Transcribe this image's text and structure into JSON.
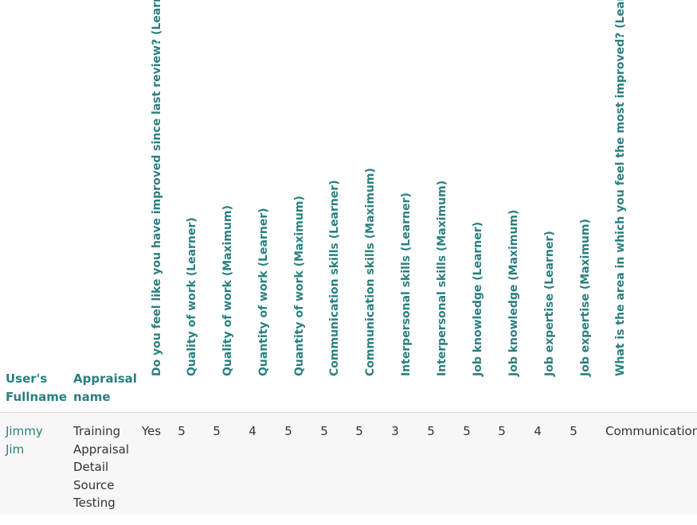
{
  "table": {
    "headers": {
      "fullname": [
        "User's",
        "Fullname"
      ],
      "appraisal": [
        "Appraisal",
        "name"
      ],
      "questions": [
        "Do you feel like you have improved since last review? (Learner)",
        "Quality of work (Learner)",
        "Quality of work (Maximum)",
        "Quantity of work (Learner)",
        "Quantity of work (Maximum)",
        "Communication skills (Learner)",
        "Communication skills (Maximum)",
        "Interpersonal skills (Learner)",
        "Interpersonal skills (Maximum)",
        "Job knowledge (Learner)",
        "Job knowledge (Maximum)",
        "Job expertise (Learner)",
        "Job expertise (Maximum)",
        "What is the area in which you feel the most improved? (Learner)"
      ]
    },
    "rows": [
      {
        "fullname": [
          "Jimmy",
          "Jim"
        ],
        "appraisal": [
          "Training",
          "Appraisal",
          "Detail",
          "Source",
          "Testing"
        ],
        "values": [
          "Yes",
          "5",
          "5",
          "4",
          "5",
          "5",
          "5",
          "3",
          "5",
          "5",
          "5",
          "4",
          "5",
          "Communication"
        ]
      }
    ]
  }
}
